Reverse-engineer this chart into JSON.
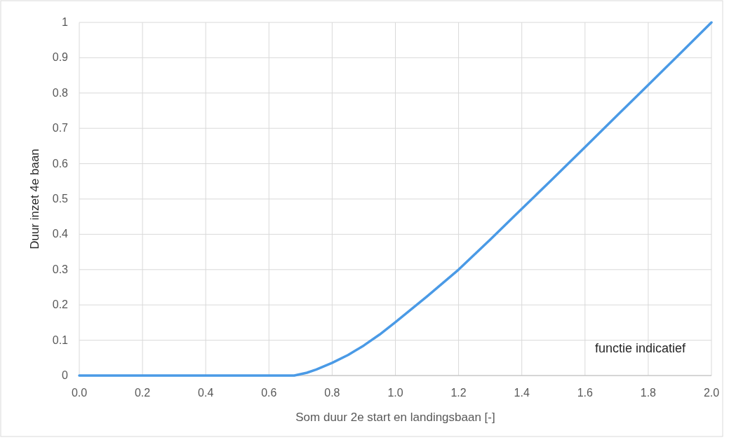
{
  "chart_data": {
    "type": "line",
    "xlabel": "Som duur 2e start en landingsbaan [-]",
    "ylabel": "Duur inzet 4e baan",
    "x": [
      0,
      0.68,
      0.72,
      0.75,
      0.8,
      0.85,
      0.9,
      0.95,
      1.0,
      1.1,
      1.2,
      1.3,
      1.4,
      1.5,
      1.6,
      1.7,
      1.8,
      1.9,
      2.0
    ],
    "series": [
      {
        "color": "#4a9ae6",
        "values": [
          0,
          0,
          0.008,
          0.017,
          0.036,
          0.058,
          0.085,
          0.116,
          0.151,
          0.224,
          0.3,
          0.385,
          0.472,
          0.559,
          0.647,
          0.735,
          0.823,
          0.911,
          1.0
        ]
      }
    ],
    "xlim": [
      0,
      2
    ],
    "xticks": [
      {
        "value": 0,
        "label": "0.0"
      },
      0.2,
      0.4,
      0.6,
      0.8,
      {
        "value": 1,
        "label": "1.0"
      },
      1.2,
      1.4,
      1.6,
      1.8,
      {
        "value": 2,
        "label": "2.0"
      }
    ],
    "ylim": [
      0,
      1
    ],
    "yticks": [
      0,
      0.1,
      0.2,
      0.3,
      0.4,
      0.5,
      0.6,
      0.7,
      0.8,
      0.9,
      1
    ],
    "grid": true,
    "marker": "none",
    "line_style": "solid",
    "annotations": [
      "functie indicatief"
    ]
  }
}
